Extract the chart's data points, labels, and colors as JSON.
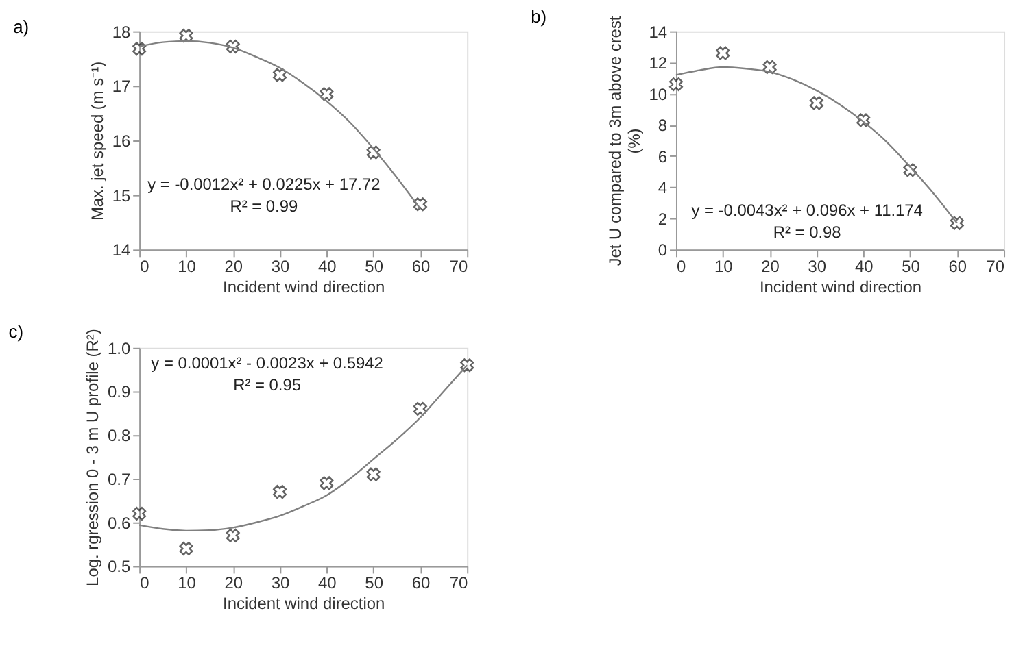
{
  "chart_data": [
    {
      "type": "scatter",
      "title": "a)",
      "xlabel": "Incident wind direction",
      "ylabel": "Max. jet speed (m s⁻¹)",
      "x": [
        0,
        10,
        20,
        30,
        40,
        50,
        60
      ],
      "xlim": [
        0,
        70
      ],
      "xticks": [
        0,
        10,
        20,
        30,
        40,
        50,
        60,
        70
      ],
      "ylim": [
        14,
        18
      ],
      "yticks": [
        14,
        15,
        16,
        17,
        18
      ],
      "grid": false,
      "legend": false,
      "marker": "cross",
      "series": [
        {
          "color": "#222222",
          "values": [
            17.68,
            17.92,
            17.72,
            17.2,
            16.85,
            15.78,
            14.83
          ]
        },
        {
          "type": "line",
          "color": "#808080",
          "line_style": "solid",
          "marker": "none",
          "x": [
            0,
            5,
            10,
            15,
            20,
            25,
            30,
            35,
            40,
            45,
            50,
            55,
            60
          ],
          "values": [
            17.72,
            17.8,
            17.82,
            17.79,
            17.7,
            17.53,
            17.33,
            17.05,
            16.72,
            16.33,
            15.85,
            15.32,
            14.75
          ]
        }
      ],
      "annotations": [
        "y = -0.0012x² + 0.0225x + 17.72",
        "R² = 0.99"
      ]
    },
    {
      "type": "scatter",
      "title": "b)",
      "xlabel": "Incident wind direction",
      "ylabel": "Jet U compared to  3m above crest\n(%)",
      "x": [
        0,
        10,
        20,
        30,
        40,
        50,
        60
      ],
      "xlim": [
        0,
        70
      ],
      "xticks": [
        0,
        10,
        20,
        30,
        40,
        50,
        60,
        70
      ],
      "ylim": [
        0,
        14
      ],
      "yticks": [
        0,
        2,
        4,
        6,
        8,
        10,
        12,
        14
      ],
      "grid": false,
      "legend": false,
      "marker": "cross",
      "series": [
        {
          "color": "#222222",
          "values": [
            10.6,
            12.6,
            11.7,
            9.4,
            8.3,
            5.1,
            1.7
          ]
        },
        {
          "type": "line",
          "color": "#808080",
          "line_style": "solid",
          "marker": "none",
          "x": [
            0,
            5,
            10,
            15,
            20,
            25,
            30,
            35,
            40,
            45,
            50,
            55,
            60
          ],
          "values": [
            11.2,
            11.5,
            11.7,
            11.6,
            11.4,
            10.9,
            10.2,
            9.3,
            8.2,
            6.9,
            5.3,
            3.6,
            1.7
          ]
        }
      ],
      "annotations": [
        "y = -0.0043x² + 0.096x + 11.174",
        "R² = 0.98"
      ]
    },
    {
      "type": "scatter",
      "title": "c)",
      "xlabel": "Incident wind direction",
      "ylabel": "Log. rgression 0 - 3 m U profile (R²)",
      "x": [
        0,
        10,
        20,
        30,
        40,
        50,
        60,
        70
      ],
      "xlim": [
        0,
        70
      ],
      "xticks": [
        0,
        10,
        20,
        30,
        40,
        50,
        60,
        70
      ],
      "ylim": [
        0.5,
        1.0
      ],
      "yticks": [
        0.5,
        0.6,
        0.7,
        0.8,
        0.9,
        {
          "value": 1.0,
          "label": "1.0"
        }
      ],
      "grid": false,
      "legend": false,
      "marker": "cross",
      "series": [
        {
          "color": "#222222",
          "values": [
            0.62,
            0.54,
            0.57,
            0.67,
            0.69,
            0.71,
            0.86,
            0.96
          ]
        },
        {
          "type": "line",
          "color": "#808080",
          "line_style": "solid",
          "marker": "none",
          "x": [
            0,
            5,
            10,
            15,
            20,
            25,
            30,
            35,
            40,
            45,
            50,
            55,
            60,
            65,
            70
          ],
          "values": [
            0.594,
            0.585,
            0.581,
            0.582,
            0.588,
            0.6,
            0.615,
            0.637,
            0.662,
            0.7,
            0.745,
            0.79,
            0.84,
            0.9,
            0.96
          ]
        }
      ],
      "annotations": [
        "y = 0.0001x² - 0.0023x + 0.5942",
        "R² = 0.95"
      ]
    }
  ]
}
